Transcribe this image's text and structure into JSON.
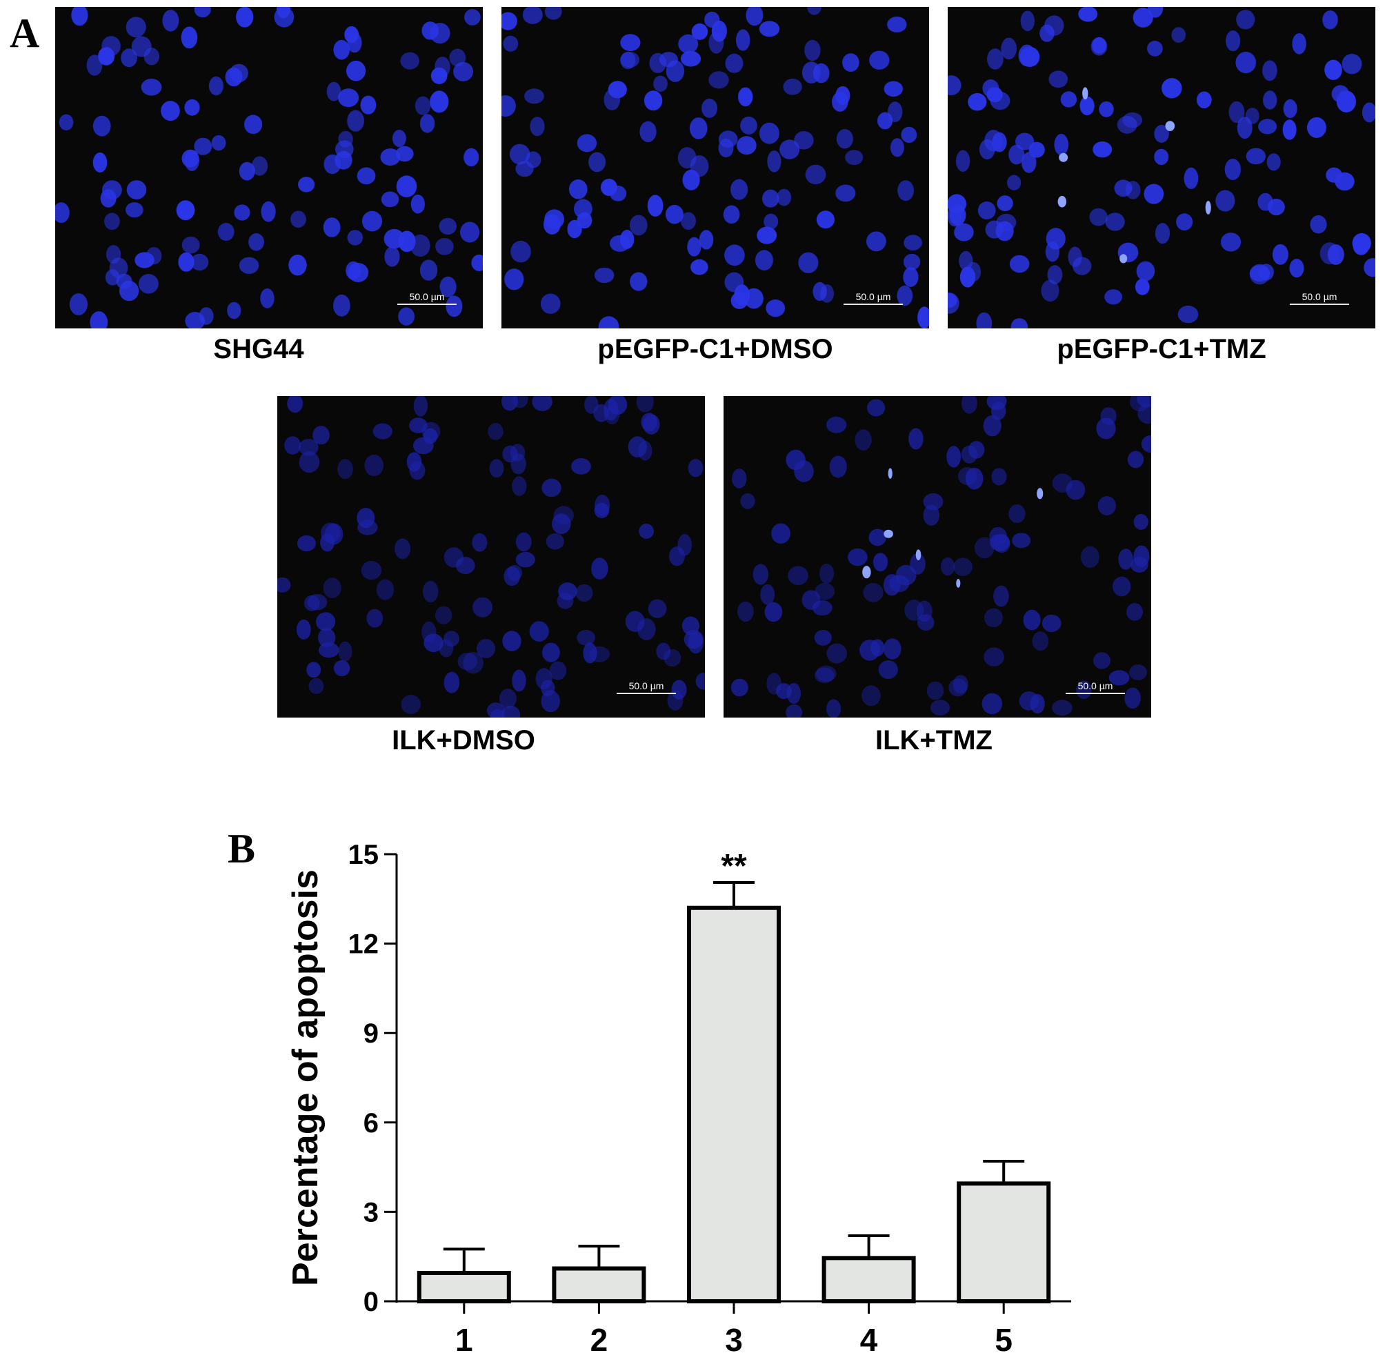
{
  "panels": {
    "a_label": "A",
    "b_label": "B"
  },
  "images": [
    {
      "caption": "SHG44",
      "scale": "50.0 µm",
      "tmz": false
    },
    {
      "caption": "pEGFP-C1+DMSO",
      "scale": "50.0 µm",
      "tmz": false
    },
    {
      "caption": "pEGFP-C1+TMZ",
      "scale": "50.0 µm",
      "tmz": true
    },
    {
      "caption": "ILK+DMSO",
      "scale": "50.0 µm",
      "tmz": false
    },
    {
      "caption": "ILK+TMZ",
      "scale": "50.0 µm",
      "tmz": true
    }
  ],
  "colors": {
    "nucleus": "#2a35e6",
    "nucleus_dim": "#1c22a8",
    "apoptotic": "#8fa4ff",
    "image_bg": "#080808",
    "bar_fill": "#e3e5e3"
  },
  "chart_data": {
    "type": "bar",
    "categories": [
      "1",
      "2",
      "3",
      "4",
      "5"
    ],
    "values": [
      0.95,
      1.1,
      13.2,
      1.45,
      3.95
    ],
    "errors": [
      0.8,
      0.75,
      0.85,
      0.75,
      0.75
    ],
    "annotations": [
      "",
      "",
      "**",
      "",
      ""
    ],
    "ylabel": "Percentage of apoptosis",
    "ylim": [
      0,
      15
    ],
    "yticks": [
      0,
      3,
      6,
      9,
      12,
      15
    ],
    "grid": false
  }
}
